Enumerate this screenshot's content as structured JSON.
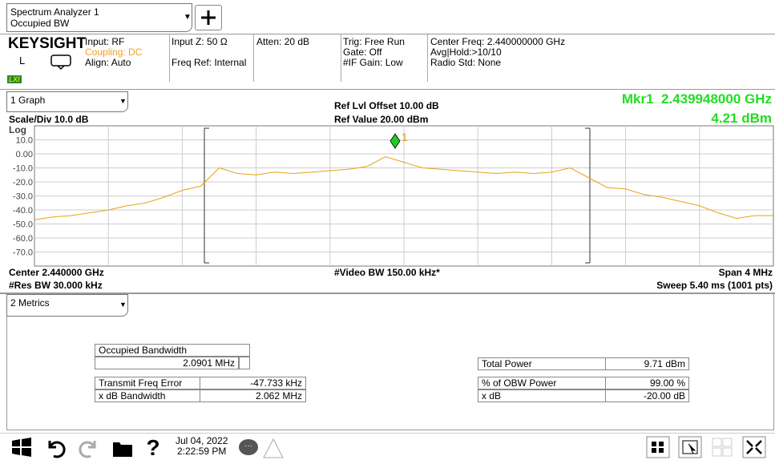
{
  "header": {
    "title": "Spectrum Analyzer 1",
    "subtitle": "Occupied BW"
  },
  "brand": "KEYSIGHT",
  "local": "L",
  "lxi": "LXI",
  "settings": [
    [
      "Input: RF",
      "Coupling: DC",
      "Align: Auto"
    ],
    [
      "Input Z: 50 Ω",
      null,
      "Freq Ref: Internal"
    ],
    [
      "Atten: 20 dB"
    ],
    [
      "Trig: Free Run",
      "Gate: Off",
      "#IF Gain: Low"
    ],
    [
      "Center Freq: 2.440000000 GHz",
      "Avg|Hold:>10/10",
      "Radio Std: None"
    ]
  ],
  "graph": {
    "selector": "1 Graph",
    "ref_offset": "Ref Lvl Offset 10.00 dB",
    "ref_value": "Ref Value 20.00 dBm",
    "scale": "Scale/Div 10.0 dB",
    "scale_type": "Log",
    "marker_freq": "Mkr1  2.439948000 GHz",
    "marker_level": "4.21 dBm",
    "marker_label": "1",
    "center": "Center 2.440000 GHz",
    "video_bw": "#Video BW 150.00 kHz*",
    "span": "Span 4 MHz",
    "res_bw": "#Res BW 30.000 kHz",
    "sweep": "Sweep 5.40 ms (1001 pts)"
  },
  "chart_data": {
    "type": "line",
    "color": "#e8a317",
    "values": [
      -47,
      -45,
      -44,
      -42,
      -40,
      -37,
      -35,
      -31,
      -26,
      -23,
      -10,
      -14,
      -15,
      -13,
      -14,
      -13,
      -12,
      -11,
      -9,
      -2,
      -6,
      -10,
      -11,
      -12,
      -13,
      -14,
      -13,
      -14,
      -13,
      -10,
      -17,
      -24,
      -25,
      -29,
      -31,
      -34,
      -37,
      -42,
      -46,
      -44,
      -44
    ],
    "ylim": [
      -80,
      20
    ],
    "yticks": [
      {
        "value": 10,
        "label": "10.0"
      },
      {
        "value": 0,
        "label": "0.00"
      },
      {
        "value": -10,
        "label": "-10.0"
      },
      {
        "value": -20,
        "label": "-20.0"
      },
      {
        "value": -30,
        "label": "-30.0"
      },
      {
        "value": -40,
        "label": "-40.0"
      },
      {
        "value": -50,
        "label": "-50.0"
      },
      {
        "value": -60,
        "label": "-60.0"
      },
      {
        "value": -70,
        "label": "-70.0"
      }
    ],
    "grid": true
  },
  "metrics": {
    "selector": "2 Metrics",
    "occupied": {
      "label": "Occupied Bandwidth",
      "value": "2.0901 MHz"
    },
    "left": [
      [
        "Transmit Freq Error",
        "-47.733 kHz"
      ],
      [
        "x dB Bandwidth",
        "2.062 MHz"
      ]
    ],
    "right": [
      [
        "Total Power",
        "9.71 dBm"
      ],
      [
        "% of OBW Power",
        "99.00 %"
      ],
      [
        "x dB",
        "-20.00 dB"
      ]
    ]
  },
  "taskbar": {
    "date": "Jul 04, 2022",
    "time": "2:22:59 PM"
  }
}
